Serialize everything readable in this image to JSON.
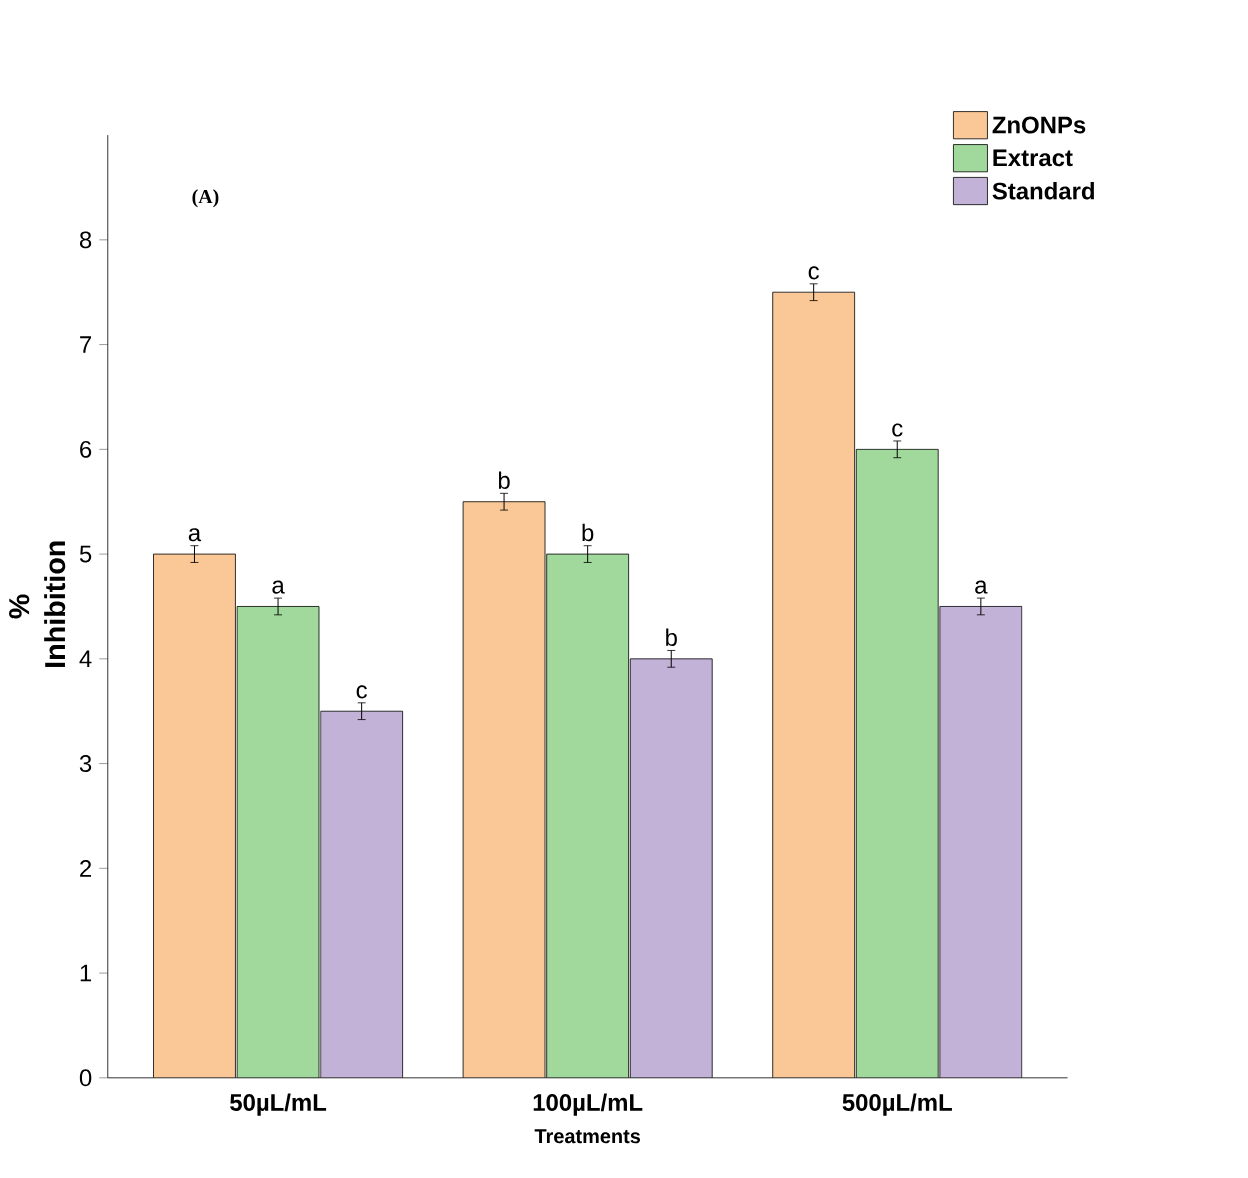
{
  "chart_data": {
    "type": "bar",
    "xlabel": "Treatments",
    "ylabel": "% Inhibition",
    "categories": [
      "50µL/mL",
      "100µL/mL",
      "500µL/mL"
    ],
    "series": [
      {
        "name": "ZnONPs",
        "color": "#fac796",
        "values": [
          5,
          5.5,
          7.5
        ],
        "errors": [
          0.08,
          0.08,
          0.08
        ],
        "value_labels": [
          "a",
          "b",
          "c"
        ]
      },
      {
        "name": "Extract",
        "color": "#a0d99b",
        "values": [
          4.5,
          5,
          6
        ],
        "errors": [
          0.08,
          0.08,
          0.08
        ],
        "value_labels": [
          "a",
          "b",
          "c"
        ]
      },
      {
        "name": "Standard",
        "color": "#c2b2d8",
        "values": [
          3.5,
          4,
          4.5
        ],
        "errors": [
          0.08,
          0.08,
          0.08
        ],
        "value_labels": [
          "c",
          "b",
          "a"
        ]
      }
    ],
    "ylim": [
      0,
      9
    ],
    "yticks": [
      0,
      1,
      2,
      3,
      4,
      5,
      6,
      7,
      8
    ],
    "legend": "top right",
    "grid": false,
    "annotations": [
      "(A)"
    ]
  }
}
